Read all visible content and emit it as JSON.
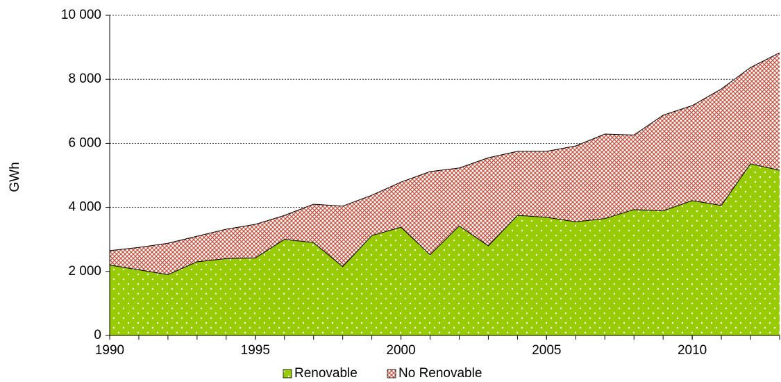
{
  "chart_data": {
    "type": "stacked_area",
    "y_label": "GWh",
    "x": [
      1990,
      1991,
      1992,
      1993,
      1994,
      1995,
      1996,
      1997,
      1998,
      1999,
      2000,
      2001,
      2002,
      2003,
      2004,
      2005,
      2006,
      2007,
      2008,
      2009,
      2010,
      2011,
      2012,
      2013
    ],
    "series": [
      {
        "name": "Renovable",
        "color": "#99cc00",
        "values": [
          2200,
          2050,
          1900,
          2300,
          2400,
          2420,
          3000,
          2900,
          2150,
          3120,
          3380,
          2520,
          3420,
          2800,
          3750,
          3690,
          3550,
          3650,
          3930,
          3890,
          4210,
          4060,
          5360,
          5160
        ]
      },
      {
        "name": "No Renovable",
        "color": "#c0503c",
        "values": [
          450,
          700,
          980,
          800,
          920,
          1050,
          750,
          1200,
          1890,
          1260,
          1410,
          2600,
          1810,
          2750,
          2000,
          2060,
          2370,
          2640,
          2330,
          2990,
          2970,
          3640,
          3010,
          3670
        ]
      }
    ],
    "xlim": [
      1990,
      2013
    ],
    "xticks": [
      1990,
      1995,
      2000,
      2005,
      2010
    ],
    "ylim": [
      0,
      10000
    ],
    "yticks": [
      0,
      {
        "value": 2000,
        "label": "2 000"
      },
      {
        "value": 4000,
        "label": "4 000"
      },
      {
        "value": 6000,
        "label": "6 000"
      },
      {
        "value": 8000,
        "label": "8 000"
      },
      {
        "value": 10000,
        "label": "10 000"
      }
    ],
    "grid": true,
    "legend": "bottom"
  }
}
